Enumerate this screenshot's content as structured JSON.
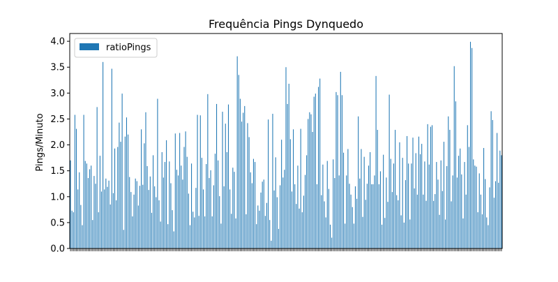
{
  "chart_data": {
    "type": "bar",
    "title": "Frequência Pings Dynquedo",
    "xlabel": "",
    "ylabel": "Pings/Minuto",
    "ylim": [
      0,
      4.15
    ],
    "yticks": [
      "0.0",
      "0.5",
      "1.0",
      "1.5",
      "2.0",
      "2.5",
      "3.0",
      "3.5",
      "4.0"
    ],
    "grid": false,
    "legend": {
      "placement": "top-left",
      "entries": [
        "ratioPings"
      ]
    },
    "bar_color": "#1f77b4",
    "series": [
      {
        "name": "ratioPings",
        "values": [
          1.7,
          0.73,
          0.7,
          2.58,
          2.31,
          1.14,
          1.47,
          0.84,
          0.45,
          2.58,
          1.69,
          1.64,
          1.36,
          1.53,
          1.6,
          0.55,
          1.4,
          1.25,
          2.73,
          0.7,
          1.79,
          1.1,
          3.6,
          1.14,
          1.35,
          1.19,
          1.31,
          0.85,
          3.47,
          1.07,
          1.93,
          0.93,
          1.96,
          2.43,
          2.06,
          2.99,
          0.36,
          2.16,
          2.53,
          2.2,
          1.38,
          1.09,
          0.62,
          1.04,
          1.35,
          1.3,
          0.83,
          1.21,
          2.3,
          1.23,
          2.03,
          2.63,
          1.59,
          1.13,
          1.39,
          0.69,
          1.8,
          1.2,
          0.99,
          2.89,
          0.93,
          0.52,
          1.86,
          1.37,
          1.67,
          2.09,
          0.47,
          1.68,
          1.26,
          0.74,
          0.33,
          2.22,
          1.52,
          1.41,
          2.23,
          1.6,
          1.33,
          1.96,
          2.26,
          1.77,
          1.06,
          0.45,
          1.64,
          0.71,
          0.6,
          1.17,
          2.58,
          0.63,
          2.57,
          1.75,
          1.14,
          0.62,
          1.63,
          2.98,
          1.36,
          1.51,
          0.62,
          1.22,
          1.83,
          2.79,
          1.7,
          1.01,
          0.48,
          2.64,
          1.2,
          2.41,
          1.86,
          2.78,
          1.14,
          0.67,
          1.56,
          1.48,
          0.58,
          3.71,
          3.35,
          2.89,
          2.45,
          2.62,
          2.75,
          0.66,
          2.42,
          2.15,
          1.47,
          1.26,
          1.73,
          1.67,
          0.47,
          0.83,
          0.73,
          1.08,
          1.29,
          1.33,
          0.63,
          0.88,
          2.49,
          0.55,
          0.15,
          2.6,
          1.12,
          1.76,
          0.99,
          0.38,
          1.22,
          2.1,
          1.37,
          1.52,
          3.5,
          2.79,
          3.18,
          2.11,
          1.1,
          2.3,
          1.24,
          0.86,
          1.6,
          0.77,
          2.31,
          0.7,
          1.02,
          1.42,
          1.8,
          2.5,
          2.63,
          2.59,
          2.25,
          2.93,
          2.99,
          1.24,
          3.12,
          3.28,
          1.03,
          1.62,
          0.91,
          0.6,
          1.69,
          1.15,
          0.46,
          0.21,
          1.72,
          1.36,
          3.02,
          2.96,
          1.41,
          3.41,
          2.96,
          1.85,
          0.48,
          1.41,
          1.92,
          1.25,
          1.04,
          0.8,
          0.48,
          1.2,
          0.96,
          2.55,
          1.35,
          1.92,
          0.61,
          1.77,
          0.94,
          1.25,
          1.6,
          1.86,
          1.24,
          1.24,
          1.41,
          3.33,
          2.29,
          1.24,
          1.49,
          0.46,
          1.81,
          0.59,
          1.37,
          0.9,
          2.97,
          1.73,
          1.09,
          1.64,
          2.29,
          1.03,
          0.93,
          2.05,
          0.64,
          1.75,
          0.5,
          1.32,
          2.17,
          1.64,
          0.56,
          1.64,
          2.14,
          1.16,
          1.84,
          1.04,
          2.16,
          1.82,
          2.02,
          1.04,
          1.68,
          0.92,
          2.4,
          1.62,
          2.35,
          2.38,
          0.92,
          1.05,
          1.67,
          1.33,
          0.65,
          1.7,
          1.11,
          2.06,
          0.56,
          1.59,
          2.55,
          2.29,
          0.91,
          1.41,
          3.52,
          2.84,
          1.37,
          1.79,
          1.93,
          1.43,
          0.58,
          1.67,
          1.04,
          2.38,
          1.96,
          3.99,
          3.87,
          1.72,
          1.6,
          1.58,
          0.7,
          1.45,
          1.04,
          0.66,
          1.94,
          1.34,
          0.6,
          0.45,
          1.18,
          2.65,
          2.48,
          0.98,
          1.3,
          2.23,
          1.27,
          1.89,
          1.8
        ],
        "categories_shown": "x tick labels are numeric indices, rotated and overlapping"
      }
    ]
  }
}
